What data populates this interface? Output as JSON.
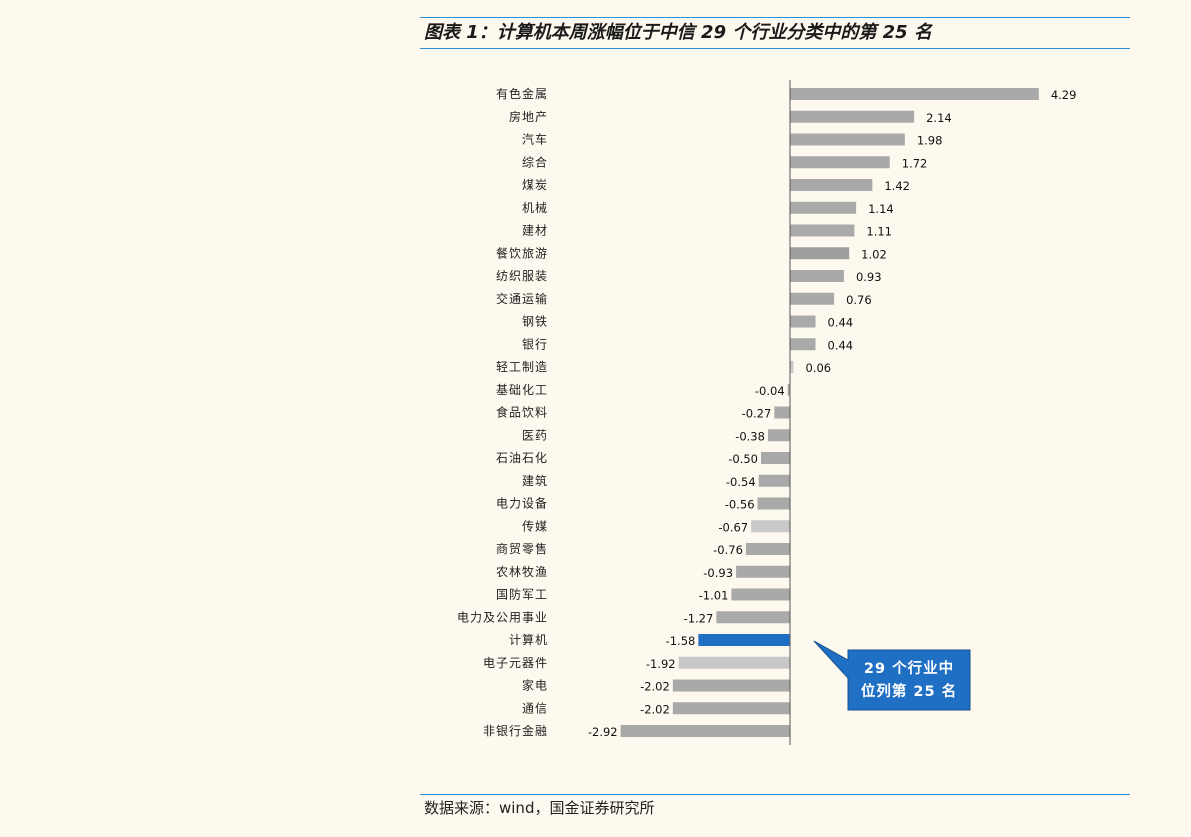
{
  "header": {
    "title": "图表 1：计算机本周涨幅位于中信 29 个行业分类中的第 25 名"
  },
  "footer": {
    "source": "数据来源：wind，国金证券研究所"
  },
  "colors": {
    "bar_default": "#a9a9a9",
    "bar_highlight": "#1f6fc4",
    "bar_light": "#c8c8c8",
    "bar_dark": "#9e9e9e",
    "callout_bg": "#1f6fc4",
    "rule": "#2b8fd6"
  },
  "callout": {
    "line1": "29 个行业中",
    "line2": "位列第 25 名"
  },
  "chart_data": {
    "type": "bar",
    "orientation": "horizontal",
    "categories": [
      "有色金属",
      "房地产",
      "汽车",
      "综合",
      "煤炭",
      "机械",
      "建材",
      "餐饮旅游",
      "纺织服装",
      "交通运输",
      "钢铁",
      "银行",
      "轻工制造",
      "基础化工",
      "食品饮料",
      "医药",
      "石油石化",
      "建筑",
      "电力设备",
      "传媒",
      "商贸零售",
      "农林牧渔",
      "国防军工",
      "电力及公用事业",
      "计算机",
      "电子元器件",
      "家电",
      "通信",
      "非银行金融"
    ],
    "values": [
      4.29,
      2.14,
      1.98,
      1.72,
      1.42,
      1.14,
      1.11,
      1.02,
      0.93,
      0.76,
      0.44,
      0.44,
      0.06,
      -0.04,
      -0.27,
      -0.38,
      -0.5,
      -0.54,
      -0.56,
      -0.67,
      -0.76,
      -0.93,
      -1.01,
      -1.27,
      -1.58,
      -1.92,
      -2.02,
      -2.02,
      -2.92
    ],
    "value_labels": [
      "4.29",
      "2.14",
      "1.98",
      "1.72",
      "1.42",
      "1.14",
      "1.11",
      "1.02",
      "0.93",
      "0.76",
      "0.44",
      "0.44",
      "0.06",
      "-0.04",
      "-0.27",
      "-0.38",
      "-0.50",
      "-0.54",
      "-0.56",
      "-0.67",
      "-0.76",
      "-0.93",
      "-1.01",
      "-1.27",
      "-1.58",
      "-1.92",
      "-2.02",
      "-2.02",
      "-2.92"
    ],
    "bar_colors": [
      "default",
      "default",
      "default",
      "default",
      "default",
      "default",
      "default",
      "dark",
      "default",
      "default",
      "default",
      "default",
      "light",
      "default",
      "default",
      "default",
      "default",
      "default",
      "default",
      "light",
      "default",
      "default",
      "default",
      "default",
      "highlight",
      "light",
      "default",
      "default",
      "default"
    ],
    "highlight_category": "计算机",
    "title": "图表 1：计算机本周涨幅位于中信 29 个行业分类中的第 25 名",
    "xlabel": "",
    "ylabel": "",
    "grid": false,
    "legend": "none",
    "data_labels": true
  }
}
